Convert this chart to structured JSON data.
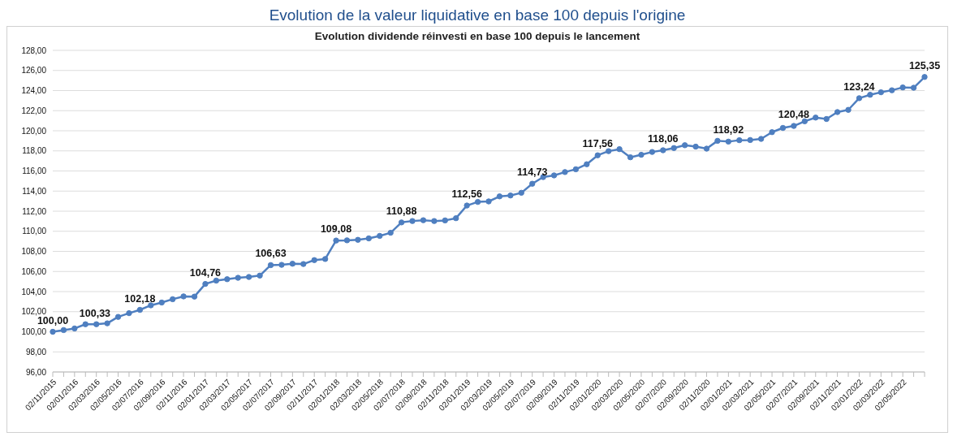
{
  "chart_data": {
    "type": "line",
    "title": "Evolution de la valeur liquidative en base 100 depuis l'origine",
    "subtitle": "Evolution dividende réinvesti en base 100 depuis le lancement",
    "categories": [
      "02/11/2015",
      null,
      "02/01/2016",
      null,
      "02/03/2016",
      null,
      "02/05/2016",
      null,
      "02/07/2016",
      null,
      "02/09/2016",
      null,
      "02/11/2016",
      null,
      "02/01/2017",
      null,
      "02/03/2017",
      null,
      "02/05/2017",
      null,
      "02/07/2017",
      null,
      "02/09/2017",
      null,
      "02/11/2017",
      null,
      "02/01/2018",
      null,
      "02/03/2018",
      null,
      "02/05/2018",
      null,
      "02/07/2018",
      null,
      "02/09/2018",
      null,
      "02/11/2018",
      null,
      "02/01/2019",
      null,
      "02/03/2019",
      null,
      "02/05/2019",
      null,
      "02/07/2019",
      null,
      "02/09/2019",
      null,
      "02/11/2019",
      null,
      "02/01/2020",
      null,
      "02/03/2020",
      null,
      "02/05/2020",
      null,
      "02/07/2020",
      null,
      "02/09/2020",
      null,
      "02/11/2020",
      null,
      "02/01/2021",
      null,
      "02/03/2021",
      null,
      "02/05/2021",
      null,
      "02/07/2021",
      null,
      "02/09/2021",
      null,
      "02/11/2021",
      null,
      "02/01/2022",
      null,
      "02/03/2022",
      null,
      "02/05/2022",
      null,
      null
    ],
    "series": [
      {
        "color": "#4f7fc0",
        "values": [
          100.0,
          100.17,
          100.33,
          100.75,
          100.75,
          100.84,
          101.48,
          101.85,
          102.18,
          102.63,
          102.91,
          103.24,
          103.52,
          103.5,
          104.76,
          105.09,
          105.23,
          105.37,
          105.45,
          105.59,
          106.63,
          106.66,
          106.77,
          106.74,
          107.13,
          107.24,
          109.08,
          109.1,
          109.15,
          109.29,
          109.54,
          109.85,
          110.88,
          111.02,
          111.1,
          111.02,
          111.08,
          111.3,
          112.56,
          112.92,
          112.97,
          113.47,
          113.56,
          113.83,
          114.73,
          115.39,
          115.56,
          115.89,
          116.17,
          116.67,
          117.56,
          117.97,
          118.17,
          117.36,
          117.61,
          117.89,
          118.06,
          118.28,
          118.56,
          118.42,
          118.22,
          119.0,
          118.92,
          119.06,
          119.08,
          119.19,
          119.86,
          120.28,
          120.48,
          120.94,
          121.31,
          121.17,
          121.86,
          122.08,
          123.24,
          123.58,
          123.83,
          124.03,
          124.31,
          124.28,
          125.35
        ],
        "value_labels": [
          "100,00",
          null,
          "100,33",
          null,
          null,
          null,
          null,
          null,
          "102,18",
          null,
          null,
          null,
          null,
          null,
          "104,76",
          null,
          null,
          null,
          null,
          null,
          "106,63",
          null,
          null,
          null,
          null,
          null,
          "109,08",
          null,
          null,
          null,
          null,
          null,
          "110,88",
          null,
          null,
          null,
          null,
          null,
          "112,56",
          null,
          null,
          null,
          null,
          null,
          "114,73",
          null,
          null,
          null,
          null,
          null,
          "117,56",
          null,
          null,
          null,
          null,
          null,
          "118,06",
          null,
          null,
          null,
          null,
          null,
          "118,92",
          null,
          null,
          null,
          null,
          null,
          "120,48",
          null,
          null,
          null,
          null,
          null,
          "123,24",
          null,
          null,
          null,
          null,
          null,
          "125,35"
        ]
      }
    ],
    "ylim": [
      96,
      128
    ],
    "yticks": [
      {
        "value": 96,
        "label": "96,00"
      },
      {
        "value": 98,
        "label": "98,00"
      },
      {
        "value": 100,
        "label": "100,00"
      },
      {
        "value": 102,
        "label": "102,00"
      },
      {
        "value": 104,
        "label": "104,00"
      },
      {
        "value": 106,
        "label": "106,00"
      },
      {
        "value": 108,
        "label": "108,00"
      },
      {
        "value": 110,
        "label": "110,00"
      },
      {
        "value": 112,
        "label": "112,00"
      },
      {
        "value": 114,
        "label": "114,00"
      },
      {
        "value": 116,
        "label": "116,00"
      },
      {
        "value": 118,
        "label": "118,00"
      },
      {
        "value": 120,
        "label": "120,00"
      },
      {
        "value": 122,
        "label": "122,00"
      },
      {
        "value": 124,
        "label": "124,00"
      },
      {
        "value": 126,
        "label": "126,00"
      },
      {
        "value": 128,
        "label": "128,00"
      }
    ],
    "grid": "y",
    "marker": "circle",
    "line_style": "solid",
    "legend": false
  }
}
